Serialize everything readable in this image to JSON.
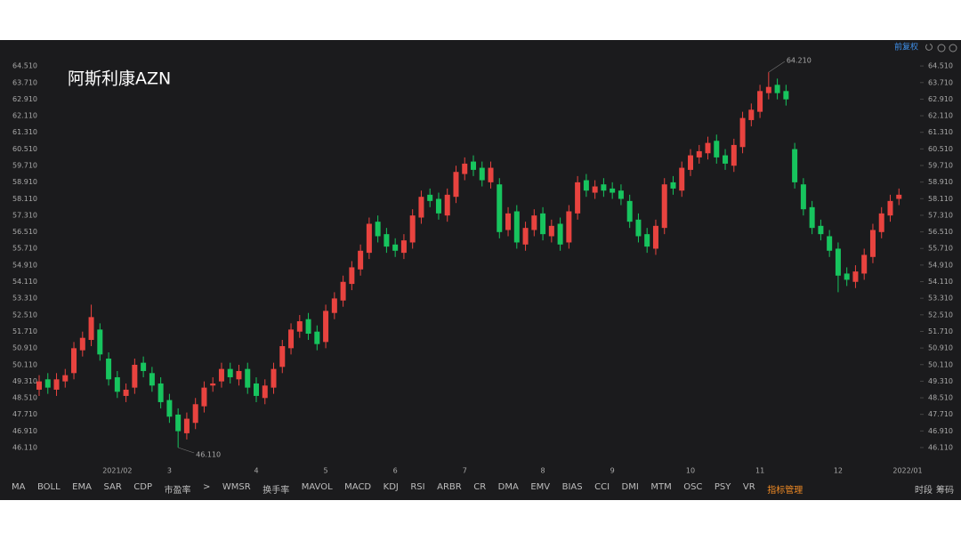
{
  "chart_data": {
    "type": "candlestick",
    "title": "阿斯利康AZN",
    "adjust_label": "前复权",
    "categories": [
      null,
      null,
      null,
      null,
      null,
      null,
      null,
      null,
      null,
      "2021/02",
      null,
      null,
      null,
      null,
      null,
      "3",
      null,
      null,
      null,
      null,
      null,
      null,
      null,
      null,
      null,
      "4",
      null,
      null,
      null,
      null,
      null,
      null,
      null,
      "5",
      null,
      null,
      null,
      null,
      null,
      null,
      null,
      "6",
      null,
      null,
      null,
      null,
      null,
      null,
      null,
      "7",
      null,
      null,
      null,
      null,
      null,
      null,
      null,
      null,
      "8",
      null,
      null,
      null,
      null,
      null,
      null,
      null,
      "9",
      null,
      null,
      null,
      null,
      null,
      null,
      null,
      null,
      "10",
      null,
      null,
      null,
      null,
      null,
      null,
      null,
      "11",
      null,
      null,
      null,
      null,
      null,
      null,
      null,
      null,
      "12",
      null,
      null,
      null,
      null,
      null,
      null,
      null,
      "2022/01"
    ],
    "open": [
      48.9,
      49.4,
      48.9,
      49.3,
      49.7,
      50.8,
      51.3,
      51.8,
      50.4,
      49.5,
      48.6,
      49.0,
      50.2,
      49.7,
      49.2,
      48.4,
      47.7,
      46.8,
      47.3,
      48.1,
      49.1,
      49.3,
      49.9,
      49.4,
      49.9,
      49.2,
      48.5,
      49.0,
      50.0,
      50.9,
      51.7,
      52.3,
      51.7,
      51.2,
      52.6,
      53.2,
      54.0,
      54.7,
      55.5,
      57.0,
      56.4,
      55.9,
      55.5,
      56.0,
      57.2,
      58.3,
      58.1,
      57.3,
      58.2,
      59.3,
      59.9,
      59.6,
      58.9,
      58.8,
      56.6,
      57.5,
      55.9,
      56.6,
      57.4,
      56.3,
      56.9,
      56.0,
      57.4,
      59.0,
      58.4,
      58.8,
      58.6,
      58.5,
      58.0,
      57.1,
      56.4,
      55.7,
      56.7,
      58.9,
      58.5,
      59.5,
      60.1,
      60.3,
      60.9,
      60.2,
      59.7,
      60.6,
      61.9,
      62.3,
      63.2,
      63.6,
      63.3,
      60.5,
      58.8,
      57.7,
      56.8,
      56.3,
      55.7,
      54.5,
      54.1,
      54.5,
      55.3,
      56.5,
      57.3,
      58.1,
      null
    ],
    "high": [
      49.6,
      49.7,
      49.7,
      49.9,
      51.2,
      51.7,
      53.0,
      52.1,
      50.7,
      49.8,
      49.2,
      50.4,
      50.5,
      50.0,
      49.5,
      48.7,
      48.0,
      47.8,
      48.5,
      49.3,
      49.5,
      50.2,
      50.2,
      50.1,
      50.2,
      49.5,
      49.4,
      50.2,
      51.3,
      52.1,
      52.5,
      52.6,
      52.0,
      53.0,
      53.6,
      54.4,
      55.1,
      55.9,
      57.2,
      57.3,
      56.7,
      56.2,
      56.4,
      57.6,
      58.5,
      58.6,
      58.4,
      58.6,
      59.7,
      60.1,
      60.2,
      59.9,
      59.9,
      59.1,
      57.7,
      57.8,
      57.0,
      57.6,
      57.7,
      57.1,
      57.2,
      57.8,
      59.2,
      59.3,
      59.0,
      59.1,
      58.9,
      58.8,
      58.3,
      57.4,
      56.7,
      57.1,
      59.1,
      59.2,
      59.9,
      60.5,
      60.7,
      61.1,
      61.2,
      60.5,
      61.0,
      62.3,
      62.7,
      63.6,
      64.21,
      63.9,
      63.6,
      60.8,
      59.1,
      58.0,
      57.1,
      56.6,
      56.0,
      54.8,
      54.9,
      55.7,
      56.9,
      57.7,
      58.3,
      58.6,
      null
    ],
    "low": [
      48.6,
      48.7,
      48.6,
      49.0,
      49.4,
      50.5,
      51.0,
      50.3,
      49.1,
      48.5,
      48.3,
      48.7,
      49.5,
      48.8,
      48.0,
      47.3,
      46.11,
      46.5,
      47.0,
      47.8,
      48.8,
      49.0,
      49.2,
      49.1,
      48.7,
      48.3,
      48.2,
      48.7,
      49.7,
      50.6,
      51.4,
      51.3,
      50.8,
      50.9,
      52.3,
      52.9,
      53.7,
      54.4,
      55.2,
      56.0,
      55.5,
      55.3,
      55.2,
      55.7,
      56.9,
      57.7,
      57.1,
      57.0,
      57.9,
      59.0,
      59.2,
      58.7,
      58.6,
      56.2,
      56.3,
      55.7,
      55.6,
      56.3,
      56.1,
      56.0,
      55.6,
      55.7,
      57.1,
      58.2,
      58.1,
      58.2,
      58.1,
      57.8,
      56.7,
      56.0,
      55.5,
      55.4,
      56.4,
      58.3,
      58.2,
      59.2,
      59.8,
      60.0,
      59.8,
      59.5,
      59.4,
      60.3,
      61.6,
      62.0,
      62.9,
      62.9,
      62.6,
      58.6,
      57.3,
      56.4,
      56.1,
      55.3,
      53.6,
      53.9,
      53.8,
      54.2,
      55.0,
      56.2,
      57.0,
      57.8,
      null
    ],
    "close": [
      49.3,
      49.0,
      49.4,
      49.6,
      50.9,
      51.4,
      52.4,
      50.6,
      49.4,
      48.8,
      48.9,
      50.1,
      49.8,
      49.1,
      48.3,
      47.6,
      46.9,
      47.5,
      48.2,
      49.0,
      49.2,
      49.9,
      49.5,
      49.8,
      49.0,
      48.6,
      49.1,
      49.9,
      51.0,
      51.8,
      52.2,
      51.6,
      51.1,
      52.7,
      53.3,
      54.1,
      54.8,
      55.6,
      56.9,
      56.3,
      55.8,
      55.6,
      56.1,
      57.3,
      58.2,
      58.0,
      57.4,
      58.3,
      59.4,
      59.8,
      59.5,
      59.0,
      59.6,
      56.5,
      57.4,
      56.0,
      56.7,
      57.3,
      56.4,
      56.8,
      55.9,
      57.5,
      58.9,
      58.5,
      58.7,
      58.5,
      58.4,
      58.1,
      57.0,
      56.3,
      55.8,
      56.8,
      58.8,
      58.6,
      59.6,
      60.2,
      60.4,
      60.8,
      60.1,
      59.8,
      60.7,
      62.0,
      62.4,
      63.3,
      63.5,
      63.2,
      62.9,
      58.9,
      57.6,
      56.7,
      56.4,
      55.6,
      54.4,
      54.2,
      54.6,
      55.4,
      56.6,
      57.4,
      58.0,
      58.3,
      null
    ],
    "up_color": "#e8433f",
    "down_color": "#17c45e",
    "ylim": [
      45.38,
      65.03
    ],
    "yticks": [
      {
        "value": 46.11,
        "label": "46.110"
      },
      {
        "value": 46.91,
        "label": "46.910"
      },
      {
        "value": 47.71,
        "label": "47.710"
      },
      {
        "value": 48.51,
        "label": "48.510"
      },
      {
        "value": 49.31,
        "label": "49.310"
      },
      {
        "value": 50.11,
        "label": "50.110"
      },
      {
        "value": 50.91,
        "label": "50.910"
      },
      {
        "value": 51.71,
        "label": "51.710"
      },
      {
        "value": 52.51,
        "label": "52.510"
      },
      {
        "value": 53.31,
        "label": "53.310"
      },
      {
        "value": 54.11,
        "label": "54.110"
      },
      {
        "value": 54.91,
        "label": "54.910"
      },
      {
        "value": 55.71,
        "label": "55.710"
      },
      {
        "value": 56.51,
        "label": "56.510"
      },
      {
        "value": 57.31,
        "label": "57.310"
      },
      {
        "value": 58.11,
        "label": "58.110"
      },
      {
        "value": 58.91,
        "label": "58.910"
      },
      {
        "value": 59.71,
        "label": "59.710"
      },
      {
        "value": 60.51,
        "label": "60.510"
      },
      {
        "value": 61.31,
        "label": "61.310"
      },
      {
        "value": 62.11,
        "label": "62.110"
      },
      {
        "value": 62.91,
        "label": "62.910"
      },
      {
        "value": 63.71,
        "label": "63.710"
      },
      {
        "value": 64.51,
        "label": "64.510"
      }
    ],
    "annotations": [
      {
        "value": 64.21,
        "label": "64.210"
      },
      {
        "value": 46.11,
        "label": "46.110"
      }
    ],
    "grid": false
  },
  "toolbar": {
    "indicators": [
      "MA",
      "BOLL",
      "EMA",
      "SAR",
      "CDP",
      "市盈率",
      ">",
      "WMSR",
      "换手率",
      "MAVOL",
      "MACD",
      "KDJ",
      "RSI",
      "ARBR",
      "CR",
      "DMA",
      "EMV",
      "BIAS",
      "CCI",
      "DMI",
      "MTM",
      "OSC",
      "PSY",
      "VR",
      "指标管理"
    ],
    "right": [
      "时段",
      "筹码"
    ]
  }
}
